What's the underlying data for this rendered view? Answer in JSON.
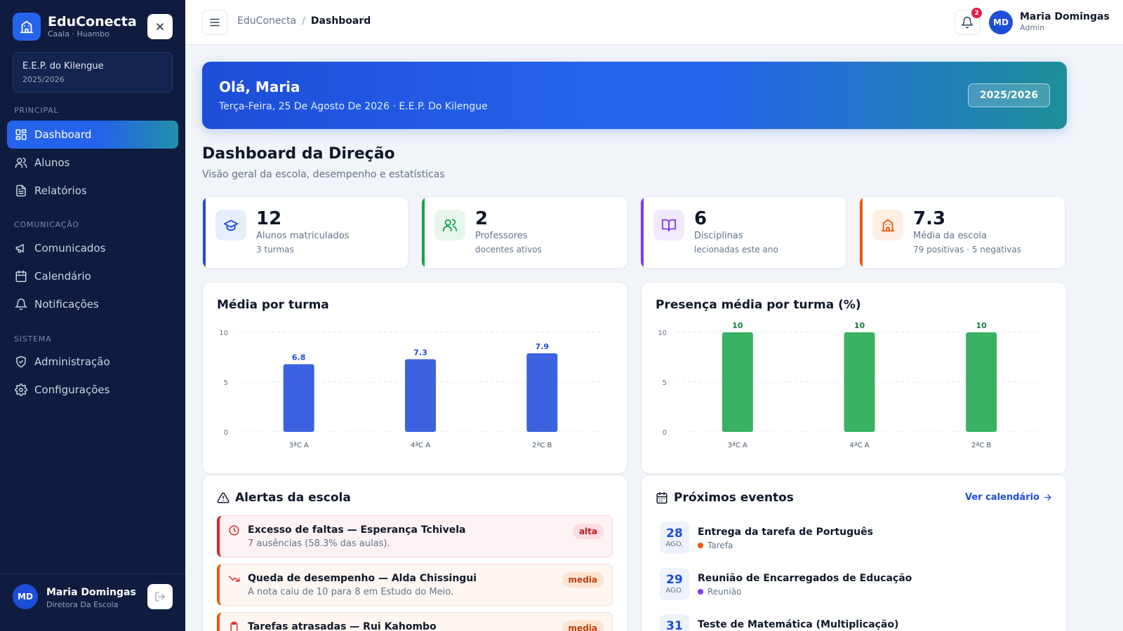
{
  "sidebar": {
    "brand": {
      "name": "EduConecta",
      "sub": "Caala · Huambo"
    },
    "school": {
      "name": "E.E.P. do Kilengue",
      "year": "2025/2026"
    },
    "sections": {
      "principal": "PRINCIPAL",
      "comunicacao": "COMUNICAÇÃO",
      "sistema": "SISTEMA"
    },
    "items": {
      "dashboard": "Dashboard",
      "alunos": "Alunos",
      "relatorios": "Relatórios",
      "comunicados": "Comunicados",
      "calendario": "Calendário",
      "notificacoes": "Notificações",
      "administracao": "Administração",
      "configuracoes": "Configurações"
    },
    "active_item": "dashboard",
    "user": {
      "initials": "MD",
      "name": "Maria Domingas",
      "role": "Diretora Da Escola"
    }
  },
  "topbar": {
    "breadcrumb": {
      "root": "EduConecta",
      "separator": "/",
      "current": "Dashboard"
    },
    "notifications_count": "2",
    "user": {
      "initials": "MD",
      "name": "Maria Domingas",
      "role": "Admin"
    }
  },
  "hero": {
    "greeting": "Olá, Maria",
    "subtitle": "Terça-Feira, 25 De Agosto De 2026 · E.E.P. Do Kilengue",
    "year": "2025/2026"
  },
  "page": {
    "title": "Dashboard da Direção",
    "subtitle": "Visão geral da escola, desempenho e estatísticas"
  },
  "stats": {
    "alunos": {
      "value": "12",
      "label": "Alunos matriculados",
      "note": "3 turmas",
      "icon": "graduation-cap-icon",
      "color": "#1d4ed8"
    },
    "professores": {
      "value": "2",
      "label": "Professores",
      "note": "docentes ativos",
      "icon": "users-icon",
      "color": "#16a34a"
    },
    "disciplinas": {
      "value": "6",
      "label": "Disciplinas",
      "note": "lecionadas este ano",
      "icon": "book-icon",
      "color": "#7c3aed"
    },
    "media": {
      "value": "7.3",
      "label": "Média da escola",
      "note": "79 positivas · 5 negativas",
      "icon": "school-icon",
      "color": "#ea580c"
    }
  },
  "charts": {
    "media_title": "Média por turma",
    "presenca_title": "Presença média por turma (%)"
  },
  "chart_data": [
    {
      "type": "bar",
      "title": "Média por turma",
      "categories": [
        "3ªC A",
        "4ªC A",
        "2ªC B"
      ],
      "values": [
        6.8,
        7.3,
        7.9
      ],
      "ylim": [
        0,
        10
      ],
      "yticks": [
        0,
        5,
        10
      ],
      "color": "#3b63df",
      "label_color": "#1d4ed8",
      "grid": true
    },
    {
      "type": "bar",
      "title": "Presença média por turma (%)",
      "categories": [
        "3ªC A",
        "4ªC A",
        "2ªC B"
      ],
      "values": [
        10,
        10,
        10
      ],
      "ylim": [
        0,
        10
      ],
      "yticks": [
        0,
        5,
        10
      ],
      "color": "#38b262",
      "label_color": "#15803d",
      "grid": true
    }
  ],
  "alerts": {
    "title": "Alertas da escola",
    "items": [
      {
        "title": "Excesso de faltas — Esperança Tchivela",
        "desc": "7 ausências (58.3% das aulas).",
        "badge": "alta",
        "icon": "clock-icon"
      },
      {
        "title": "Queda de desempenho — Alda Chissingui",
        "desc": "A nota caiu de 10 para 8 em Estudo do Meio.",
        "badge": "media",
        "icon": "trending-down-icon"
      },
      {
        "title": "Tarefas atrasadas — Rui Kahombo",
        "desc": "",
        "badge": "media",
        "icon": "clipboard-icon"
      }
    ]
  },
  "events": {
    "title": "Próximos eventos",
    "link": "Ver calendário",
    "items": [
      {
        "day": "28",
        "month": "AGO.",
        "title": "Entrega da tarefa de Português",
        "type": "Tarefa",
        "color": "#ea580c"
      },
      {
        "day": "29",
        "month": "AGO.",
        "title": "Reunião de Encarregados de Educação",
        "type": "Reunião",
        "color": "#7c3aed"
      },
      {
        "day": "31",
        "month": "",
        "title": "Teste de Matemática (Multiplicação)",
        "type": "",
        "color": "#1d4ed8"
      }
    ]
  }
}
